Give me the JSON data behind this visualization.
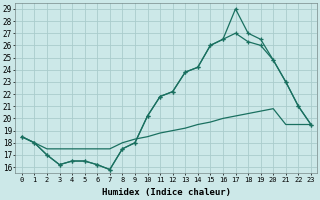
{
  "xlabel": "Humidex (Indice chaleur)",
  "background_color": "#cce8e8",
  "grid_color": "#aacccc",
  "line_color": "#1a7060",
  "xlim": [
    -0.5,
    23.5
  ],
  "ylim": [
    15.5,
    29.5
  ],
  "xticks": [
    0,
    1,
    2,
    3,
    4,
    5,
    6,
    7,
    8,
    9,
    10,
    11,
    12,
    13,
    14,
    15,
    16,
    17,
    18,
    19,
    20,
    21,
    22,
    23
  ],
  "yticks": [
    16,
    17,
    18,
    19,
    20,
    21,
    22,
    23,
    24,
    25,
    26,
    27,
    28,
    29
  ],
  "line1_x": [
    0,
    1,
    2,
    3,
    4,
    5,
    6,
    7,
    8,
    9,
    10,
    11,
    12,
    13,
    14,
    15,
    16,
    17,
    18,
    19,
    20,
    21,
    22,
    23
  ],
  "line1_y": [
    18.5,
    18.0,
    17.0,
    16.2,
    16.5,
    16.5,
    16.2,
    15.8,
    17.5,
    18.0,
    20.2,
    21.8,
    22.2,
    23.8,
    24.2,
    26.0,
    26.5,
    29.0,
    27.0,
    26.5,
    24.8,
    23.0,
    21.0,
    19.5
  ],
  "line2_x": [
    0,
    1,
    2,
    3,
    4,
    5,
    6,
    7,
    8,
    9,
    10,
    11,
    12,
    13,
    14,
    15,
    16,
    17,
    18,
    19,
    20,
    21,
    22,
    23
  ],
  "line2_y": [
    18.5,
    18.0,
    17.0,
    16.2,
    16.5,
    16.5,
    16.2,
    15.8,
    17.5,
    18.0,
    20.2,
    21.8,
    22.2,
    23.8,
    24.2,
    26.0,
    26.5,
    27.0,
    26.3,
    26.0,
    24.8,
    23.0,
    21.0,
    19.5
  ],
  "line3_x": [
    0,
    1,
    2,
    3,
    4,
    5,
    6,
    7,
    8,
    9,
    10,
    11,
    12,
    13,
    14,
    15,
    16,
    17,
    18,
    19,
    20,
    21,
    22,
    23
  ],
  "line3_y": [
    18.5,
    18.0,
    17.5,
    17.5,
    17.5,
    17.5,
    17.5,
    17.5,
    18.0,
    18.3,
    18.5,
    18.8,
    19.0,
    19.2,
    19.5,
    19.7,
    20.0,
    20.2,
    20.4,
    20.6,
    20.8,
    19.5,
    19.5,
    19.5
  ]
}
